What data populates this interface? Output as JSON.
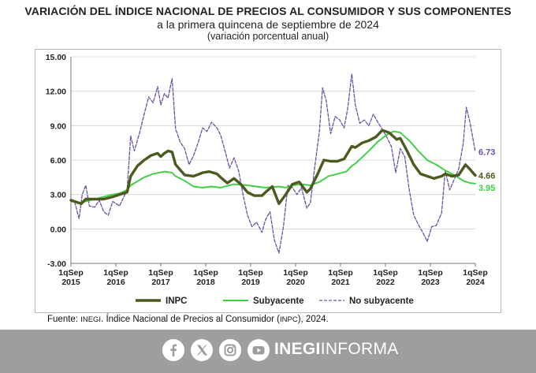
{
  "header": {
    "title": "VARIACIÓN DEL ÍNDICE NACIONAL DE PRECIOS AL CONSUMIDOR Y SUS COMPONENTES",
    "subtitle": "a la primera quincena de septiembre de 2024",
    "note": "(variación porcentual anual)"
  },
  "chart_data": {
    "type": "line",
    "ylim": [
      -3,
      15
    ],
    "yticks": [
      "15.00",
      "12.00",
      "9.00",
      "6.00",
      "3.00",
      "0.00",
      "-3.00"
    ],
    "xlim": [
      2015.67,
      2024.67
    ],
    "xticks": [
      {
        "top": "1qSep",
        "bottom": "2015"
      },
      {
        "top": "1qSep",
        "bottom": "2016"
      },
      {
        "top": "1qSep",
        "bottom": "2017"
      },
      {
        "top": "1qSep",
        "bottom": "2018"
      },
      {
        "top": "1qSep",
        "bottom": "2019"
      },
      {
        "top": "1qSep",
        "bottom": "2020"
      },
      {
        "top": "1qSep",
        "bottom": "2021"
      },
      {
        "top": "1qSep",
        "bottom": "2022"
      },
      {
        "top": "1qSep",
        "bottom": "2023"
      },
      {
        "top": "1qSep",
        "bottom": "2024"
      }
    ],
    "legend_position": "bottom",
    "series": [
      {
        "name": "INPC",
        "color": "#4b5a1f",
        "style": "solid-thick",
        "end_label": "4.66",
        "points": [
          [
            2015.67,
            2.5
          ],
          [
            2015.9,
            2.2
          ],
          [
            2016.0,
            2.6
          ],
          [
            2016.2,
            2.6
          ],
          [
            2016.4,
            2.6
          ],
          [
            2016.6,
            2.8
          ],
          [
            2016.75,
            3.0
          ],
          [
            2016.92,
            3.2
          ],
          [
            2017.0,
            4.6
          ],
          [
            2017.15,
            5.5
          ],
          [
            2017.3,
            6.0
          ],
          [
            2017.45,
            6.4
          ],
          [
            2017.6,
            6.6
          ],
          [
            2017.67,
            6.3
          ],
          [
            2017.75,
            6.6
          ],
          [
            2017.83,
            6.8
          ],
          [
            2017.92,
            6.7
          ],
          [
            2018.0,
            5.6
          ],
          [
            2018.2,
            4.7
          ],
          [
            2018.4,
            4.6
          ],
          [
            2018.6,
            4.9
          ],
          [
            2018.75,
            5.0
          ],
          [
            2018.92,
            4.8
          ],
          [
            2019.0,
            4.5
          ],
          [
            2019.15,
            4.0
          ],
          [
            2019.3,
            4.4
          ],
          [
            2019.45,
            3.9
          ],
          [
            2019.6,
            3.2
          ],
          [
            2019.75,
            2.9
          ],
          [
            2019.92,
            2.9
          ],
          [
            2020.0,
            3.2
          ],
          [
            2020.15,
            3.7
          ],
          [
            2020.3,
            2.2
          ],
          [
            2020.45,
            3.0
          ],
          [
            2020.6,
            3.9
          ],
          [
            2020.75,
            4.1
          ],
          [
            2020.92,
            3.2
          ],
          [
            2021.0,
            3.5
          ],
          [
            2021.15,
            4.7
          ],
          [
            2021.3,
            6.0
          ],
          [
            2021.45,
            5.9
          ],
          [
            2021.6,
            5.9
          ],
          [
            2021.75,
            6.1
          ],
          [
            2021.92,
            7.2
          ],
          [
            2022.0,
            7.1
          ],
          [
            2022.15,
            7.5
          ],
          [
            2022.3,
            7.7
          ],
          [
            2022.45,
            8.0
          ],
          [
            2022.6,
            8.6
          ],
          [
            2022.75,
            8.4
          ],
          [
            2022.92,
            7.8
          ],
          [
            2023.0,
            7.9
          ],
          [
            2023.15,
            6.8
          ],
          [
            2023.3,
            5.6
          ],
          [
            2023.45,
            4.8
          ],
          [
            2023.6,
            4.6
          ],
          [
            2023.75,
            4.4
          ],
          [
            2023.92,
            4.6
          ],
          [
            2024.0,
            4.8
          ],
          [
            2024.15,
            4.6
          ],
          [
            2024.3,
            4.7
          ],
          [
            2024.45,
            5.6
          ],
          [
            2024.55,
            5.2
          ],
          [
            2024.67,
            4.66
          ]
        ]
      },
      {
        "name": "Subyacente",
        "color": "#3ad141",
        "style": "solid",
        "end_label": "3.95",
        "points": [
          [
            2015.67,
            2.4
          ],
          [
            2015.9,
            2.3
          ],
          [
            2016.0,
            2.4
          ],
          [
            2016.2,
            2.6
          ],
          [
            2016.4,
            2.8
          ],
          [
            2016.6,
            3.0
          ],
          [
            2016.75,
            3.1
          ],
          [
            2016.92,
            3.4
          ],
          [
            2017.0,
            3.8
          ],
          [
            2017.3,
            4.5
          ],
          [
            2017.5,
            4.8
          ],
          [
            2017.75,
            5.0
          ],
          [
            2017.92,
            4.9
          ],
          [
            2018.0,
            4.6
          ],
          [
            2018.2,
            4.2
          ],
          [
            2018.4,
            3.7
          ],
          [
            2018.6,
            3.6
          ],
          [
            2018.8,
            3.7
          ],
          [
            2019.0,
            3.6
          ],
          [
            2019.3,
            3.9
          ],
          [
            2019.6,
            3.8
          ],
          [
            2019.8,
            3.7
          ],
          [
            2020.0,
            3.6
          ],
          [
            2020.3,
            3.7
          ],
          [
            2020.45,
            3.6
          ],
          [
            2020.6,
            3.8
          ],
          [
            2020.8,
            3.9
          ],
          [
            2021.0,
            3.8
          ],
          [
            2021.2,
            4.1
          ],
          [
            2021.4,
            4.6
          ],
          [
            2021.6,
            4.8
          ],
          [
            2021.8,
            5.0
          ],
          [
            2021.92,
            5.5
          ],
          [
            2022.0,
            5.7
          ],
          [
            2022.3,
            6.8
          ],
          [
            2022.5,
            7.6
          ],
          [
            2022.7,
            8.2
          ],
          [
            2022.85,
            8.5
          ],
          [
            2023.0,
            8.4
          ],
          [
            2023.2,
            7.7
          ],
          [
            2023.4,
            6.8
          ],
          [
            2023.6,
            6.0
          ],
          [
            2023.8,
            5.6
          ],
          [
            2024.0,
            5.1
          ],
          [
            2024.2,
            4.7
          ],
          [
            2024.4,
            4.2
          ],
          [
            2024.55,
            4.0
          ],
          [
            2024.67,
            3.95
          ]
        ]
      },
      {
        "name": "No subyacente",
        "color": "#6a4fa6",
        "style": "dashed",
        "end_label": "6.73",
        "points": [
          [
            2015.67,
            2.6
          ],
          [
            2015.75,
            2.4
          ],
          [
            2015.85,
            0.9
          ],
          [
            2015.92,
            3.0
          ],
          [
            2016.0,
            3.8
          ],
          [
            2016.08,
            2.0
          ],
          [
            2016.2,
            1.9
          ],
          [
            2016.3,
            2.5
          ],
          [
            2016.4,
            1.5
          ],
          [
            2016.5,
            1.2
          ],
          [
            2016.6,
            2.4
          ],
          [
            2016.75,
            2.0
          ],
          [
            2016.92,
            3.4
          ],
          [
            2017.0,
            8.1
          ],
          [
            2017.08,
            6.8
          ],
          [
            2017.2,
            8.4
          ],
          [
            2017.3,
            10.0
          ],
          [
            2017.4,
            11.5
          ],
          [
            2017.5,
            11.0
          ],
          [
            2017.6,
            12.4
          ],
          [
            2017.67,
            10.8
          ],
          [
            2017.75,
            11.8
          ],
          [
            2017.83,
            11.4
          ],
          [
            2017.92,
            13.1
          ],
          [
            2018.0,
            8.7
          ],
          [
            2018.1,
            7.6
          ],
          [
            2018.2,
            7.0
          ],
          [
            2018.3,
            5.6
          ],
          [
            2018.4,
            6.4
          ],
          [
            2018.5,
            7.5
          ],
          [
            2018.6,
            8.8
          ],
          [
            2018.7,
            8.5
          ],
          [
            2018.8,
            9.3
          ],
          [
            2018.92,
            8.8
          ],
          [
            2019.0,
            8.2
          ],
          [
            2019.1,
            6.8
          ],
          [
            2019.2,
            5.3
          ],
          [
            2019.3,
            6.2
          ],
          [
            2019.4,
            5.1
          ],
          [
            2019.5,
            3.0
          ],
          [
            2019.6,
            1.2
          ],
          [
            2019.7,
            0.2
          ],
          [
            2019.8,
            0.6
          ],
          [
            2019.92,
            -0.3
          ],
          [
            2020.0,
            0.8
          ],
          [
            2020.1,
            1.5
          ],
          [
            2020.2,
            -1.0
          ],
          [
            2020.3,
            -2.1
          ],
          [
            2020.4,
            0.2
          ],
          [
            2020.5,
            3.8
          ],
          [
            2020.6,
            3.6
          ],
          [
            2020.7,
            3.0
          ],
          [
            2020.8,
            3.6
          ],
          [
            2020.92,
            1.8
          ],
          [
            2021.0,
            2.3
          ],
          [
            2021.1,
            5.5
          ],
          [
            2021.2,
            8.5
          ],
          [
            2021.27,
            12.3
          ],
          [
            2021.35,
            11.2
          ],
          [
            2021.45,
            8.3
          ],
          [
            2021.55,
            9.8
          ],
          [
            2021.65,
            9.5
          ],
          [
            2021.75,
            8.8
          ],
          [
            2021.83,
            10.5
          ],
          [
            2021.92,
            13.5
          ],
          [
            2022.0,
            10.8
          ],
          [
            2022.1,
            9.2
          ],
          [
            2022.2,
            9.5
          ],
          [
            2022.3,
            9.0
          ],
          [
            2022.4,
            10.0
          ],
          [
            2022.5,
            9.3
          ],
          [
            2022.6,
            8.7
          ],
          [
            2022.7,
            8.0
          ],
          [
            2022.8,
            7.2
          ],
          [
            2022.9,
            4.9
          ],
          [
            2023.0,
            7.0
          ],
          [
            2023.1,
            6.3
          ],
          [
            2023.2,
            3.4
          ],
          [
            2023.3,
            1.2
          ],
          [
            2023.4,
            0.4
          ],
          [
            2023.5,
            -0.3
          ],
          [
            2023.6,
            -1.1
          ],
          [
            2023.7,
            0.2
          ],
          [
            2023.8,
            0.3
          ],
          [
            2023.92,
            1.4
          ],
          [
            2024.0,
            5.1
          ],
          [
            2024.1,
            3.4
          ],
          [
            2024.2,
            4.3
          ],
          [
            2024.3,
            5.2
          ],
          [
            2024.4,
            7.4
          ],
          [
            2024.47,
            10.6
          ],
          [
            2024.55,
            9.3
          ],
          [
            2024.67,
            6.73
          ]
        ]
      }
    ]
  },
  "source": {
    "label": "Fuente: ",
    "org": "INEGI",
    "text_a": ". Índice Nacional de Precios al Consumidor (",
    "abbr": "INPC",
    "text_b": "), 2024."
  },
  "footer": {
    "brand_bold": "INEGI",
    "brand_light": "INFORMA",
    "social_icons": [
      "facebook-icon",
      "x-icon",
      "instagram-icon",
      "youtube-icon"
    ],
    "bg_color": "#9e9e9e"
  }
}
